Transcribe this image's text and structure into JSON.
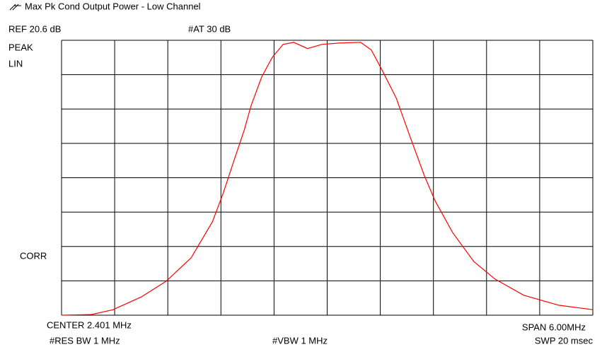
{
  "chart_data": {
    "type": "line",
    "title": "Max Pk Cond Output Power - Low Channel",
    "header": [
      "REF 20.6 dB",
      "#AT 30 dB"
    ],
    "side_labels": [
      "PEAK",
      "LIN",
      "CORR"
    ],
    "footer": [
      "CENTER 2.401 MHz",
      "SPAN 6.00MHz",
      "#RES BW 1 MHz",
      "#VBW 1 MHz",
      "SWP 20 msec"
    ],
    "xlim": [
      -0.599,
      5.401
    ],
    "ylim": [
      0,
      8
    ],
    "grid_divisions": [
      10,
      8
    ],
    "series": [
      {
        "color": "#ff0000",
        "x": [
          -0.599,
          -0.257,
          -0.017,
          0.301,
          0.583,
          0.865,
          1.105,
          1.225,
          1.345,
          1.465,
          1.543,
          1.663,
          1.783,
          1.903,
          2.023,
          2.179,
          2.341,
          2.539,
          2.779,
          2.899,
          3.019,
          3.181,
          3.337,
          3.499,
          3.619,
          3.817,
          4.057,
          4.297,
          4.621,
          5.017,
          5.401
        ],
        "values": [
          0,
          0.02,
          0.16,
          0.53,
          0.99,
          1.67,
          2.72,
          3.54,
          4.47,
          5.39,
          6.11,
          6.94,
          7.51,
          7.88,
          7.94,
          7.76,
          7.88,
          7.92,
          7.94,
          7.72,
          7.14,
          6.32,
          5.19,
          4.06,
          3.33,
          2.41,
          1.56,
          1.05,
          0.58,
          0.29,
          0.16
        ]
      }
    ]
  }
}
